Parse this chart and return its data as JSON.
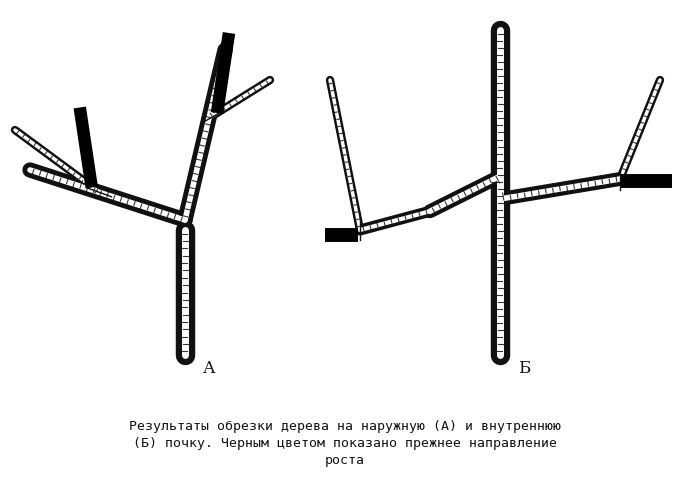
{
  "bg_color": "#ffffff",
  "fig_width": 6.9,
  "fig_height": 4.97,
  "dpi": 100,
  "caption_line1": "Результаты обрезки дерева на наружную (А) и внутреннюю",
  "caption_line2": "(Б) почку. Черным цветом показано прежнее направление",
  "caption_line3": "роста",
  "caption_fontsize": 9.5,
  "label_A": "А",
  "label_B": "Б",
  "label_fontsize": 12
}
